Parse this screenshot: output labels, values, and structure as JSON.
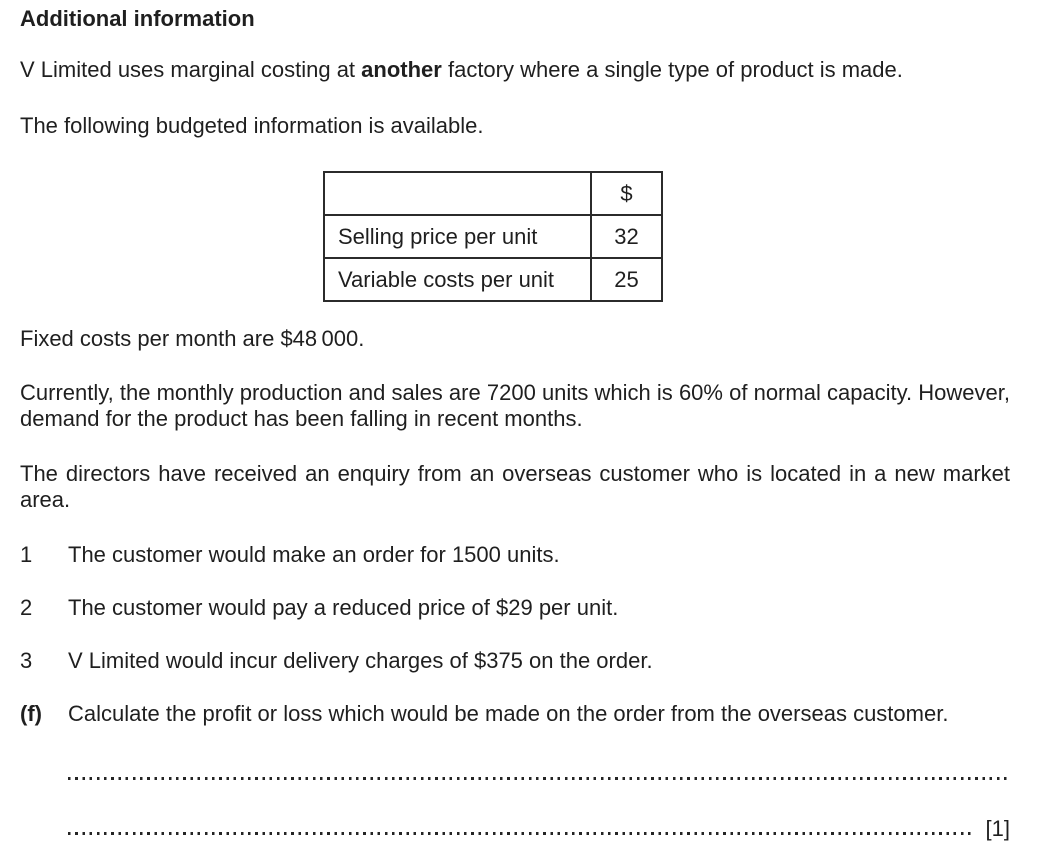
{
  "page": {
    "heading": "Additional information",
    "intro": {
      "prefix": "V Limited uses marginal costing at ",
      "bold": "another",
      "suffix": " factory where a single type of product is made."
    },
    "budget_intro": "The following budgeted information is available.",
    "table": {
      "currency_header": "$",
      "rows": [
        {
          "label": "Selling price per unit",
          "value": "32"
        },
        {
          "label": "Variable costs per unit",
          "value": "25"
        }
      ]
    },
    "fixed_costs": "Fixed costs per month are $48 000.",
    "current_production": "Currently, the monthly production and sales are 7200 units which is 60% of normal capacity. However, demand for the product has been falling in recent months.",
    "enquiry": "The directors have received an enquiry from an overseas customer who is located in a new market area.",
    "numbered_items": [
      {
        "number": "1",
        "text": "The customer would make an order for 1500 units."
      },
      {
        "number": "2",
        "text": "The customer would pay a reduced price of $29 per unit."
      },
      {
        "number": "3",
        "text": "V Limited would incur delivery charges of $375 on the order."
      }
    ],
    "question": {
      "label": "(f)",
      "text": "Calculate the profit or loss which would be made on the order from the overseas customer.",
      "marks": "[1]"
    },
    "colors": {
      "text": "#1f1f1f",
      "border": "#2b2b2b",
      "background": "#ffffff"
    }
  }
}
